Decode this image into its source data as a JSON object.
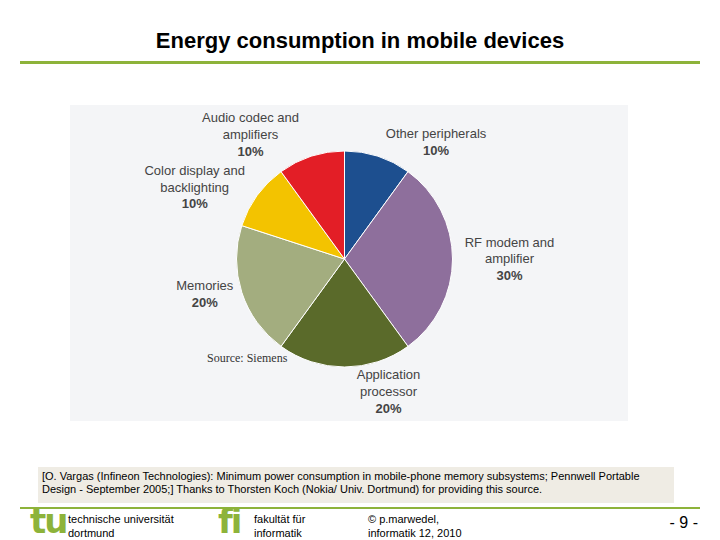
{
  "title": "Energy consumption in mobile devices",
  "chart_data": {
    "type": "pie",
    "categories": [
      "Other peripherals",
      "RF modem and amplifier",
      "Application processor",
      "Memories",
      "Color display and backlighting",
      "Audio codec and amplifiers"
    ],
    "values": [
      10,
      30,
      20,
      20,
      10,
      10
    ],
    "value_labels": [
      "10%",
      "30%",
      "20%",
      "20%",
      "10%",
      "10%"
    ],
    "colors": [
      "#1d4f8f",
      "#8e6f9c",
      "#5a6a2a",
      "#a3ad7f",
      "#f3c300",
      "#e31e26"
    ],
    "annotations": [
      "Source: Siemens"
    ]
  },
  "citation": "[O. Vargas (Infineon Technologies): Minimum power consumption in mobile-phone memory subsystems; Pennwell Portable Design - September 2005;] Thanks to Thorsten Koch (Nokia/ Univ. Dortmund) for providing this source.",
  "footer": {
    "university_logo": "tu",
    "university": [
      "technische universität",
      "dortmund"
    ],
    "faculty_logo": "fi",
    "faculty": [
      "fakultät für",
      "informatik"
    ],
    "copyright": [
      "© p.marwedel,",
      "informatik 12, 2010"
    ],
    "page": "- 9 -"
  }
}
